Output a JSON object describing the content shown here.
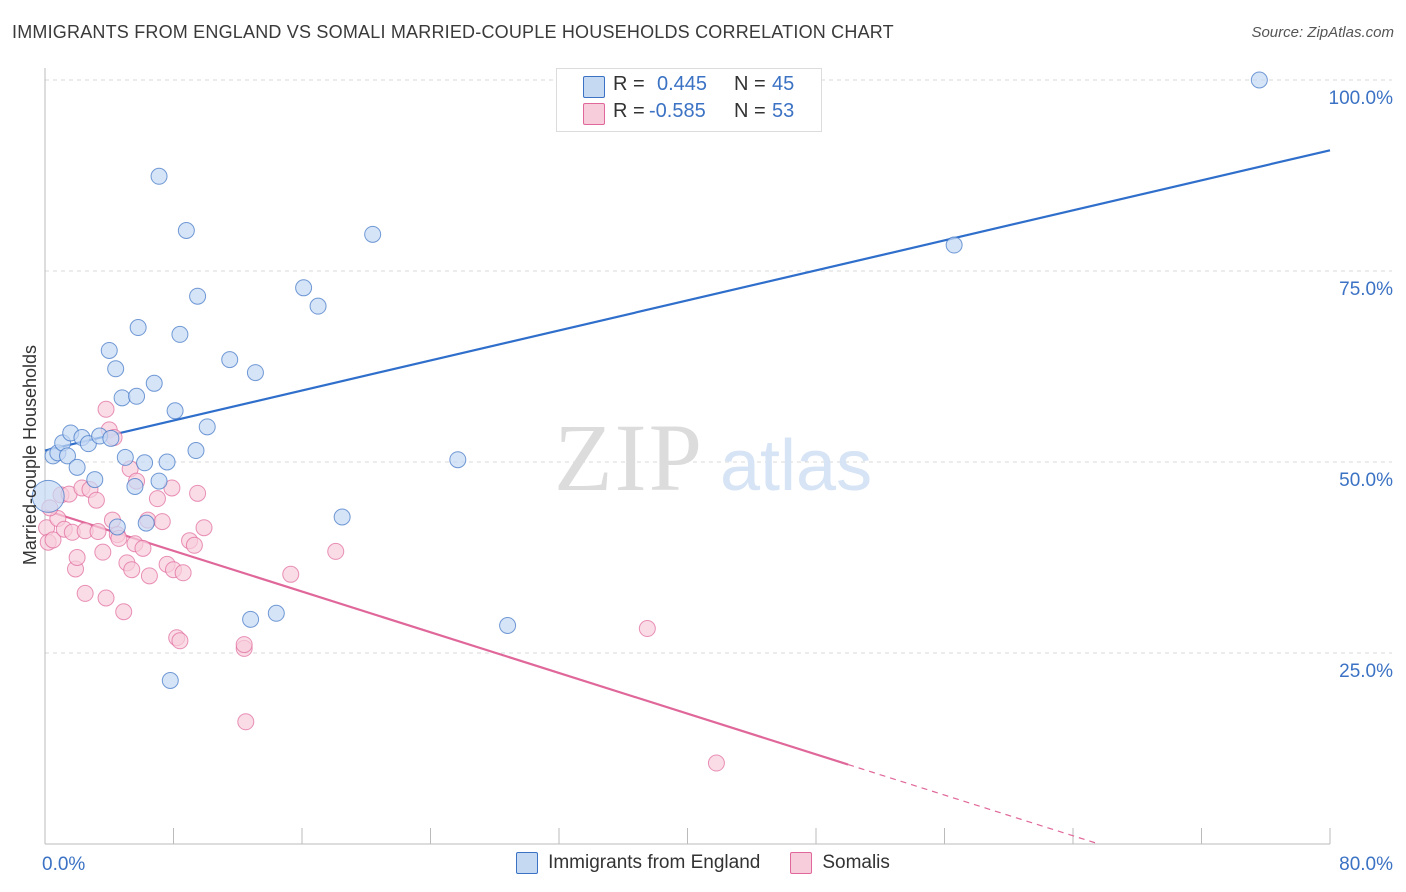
{
  "title": "IMMIGRANTS FROM ENGLAND VS SOMALI MARRIED-COUPLE HOUSEHOLDS CORRELATION CHART",
  "source": "Source: ZipAtlas.com",
  "watermark": {
    "zip": "ZIP",
    "atlas": "atlas"
  },
  "colors": {
    "blue": "#3b72c4",
    "blue_fill": "#c5d9f3",
    "blue_line": "#2f6fcb",
    "pink": "#e0679a",
    "pink_fill": "#f8cddb",
    "grid": "#d8d8d8",
    "axis_text": "#3b72c4"
  },
  "correlation_box": {
    "rows": [
      {
        "r_label": "R =",
        "r_value": "0.445",
        "n_label": "N =",
        "n_value": "45",
        "series": "Immigrants from England"
      },
      {
        "r_label": "R =",
        "r_value": "-0.585",
        "n_label": "N =",
        "n_value": "53",
        "series": "Somalis"
      }
    ]
  },
  "chart_data": {
    "type": "scatter",
    "title": "IMMIGRANTS FROM ENGLAND VS SOMALI MARRIED-COUPLE HOUSEHOLDS CORRELATION CHART",
    "xlabel": "",
    "ylabel": "Married-couple Households",
    "xlim": [
      0,
      80
    ],
    "ylim": [
      0,
      100
    ],
    "x_tick_labels": [
      "0.0%",
      "80.0%"
    ],
    "y_tick_labels": [
      "25.0%",
      "50.0%",
      "75.0%",
      "100.0%"
    ],
    "y_ticks": [
      25,
      50,
      75,
      100
    ],
    "legend": [
      "Immigrants from England",
      "Somalis"
    ],
    "series": [
      {
        "name": "Immigrants from England",
        "color": "#3b72c4",
        "points": [
          [
            0.2,
            45.5
          ],
          [
            0.5,
            50.8
          ],
          [
            0.8,
            51.2
          ],
          [
            1.1,
            52.5
          ],
          [
            1.4,
            50.8
          ],
          [
            1.6,
            53.8
          ],
          [
            2.0,
            49.3
          ],
          [
            2.3,
            53.2
          ],
          [
            2.7,
            52.4
          ],
          [
            3.1,
            47.7
          ],
          [
            3.4,
            53.4
          ],
          [
            4.1,
            53.1
          ],
          [
            4.0,
            64.6
          ],
          [
            4.4,
            62.2
          ],
          [
            4.8,
            58.4
          ],
          [
            5.0,
            50.6
          ],
          [
            5.6,
            46.8
          ],
          [
            5.7,
            58.6
          ],
          [
            5.8,
            67.6
          ],
          [
            6.2,
            49.9
          ],
          [
            6.3,
            42.0
          ],
          [
            6.8,
            60.3
          ],
          [
            7.1,
            87.4
          ],
          [
            7.1,
            47.5
          ],
          [
            7.6,
            50.0
          ],
          [
            7.8,
            21.4
          ],
          [
            8.1,
            56.7
          ],
          [
            8.4,
            66.7
          ],
          [
            8.8,
            80.3
          ],
          [
            9.4,
            51.5
          ],
          [
            9.5,
            71.7
          ],
          [
            10.1,
            54.6
          ],
          [
            11.5,
            63.4
          ],
          [
            13.1,
            61.7
          ],
          [
            12.8,
            29.4
          ],
          [
            14.4,
            30.2
          ],
          [
            16.1,
            72.8
          ],
          [
            17.0,
            70.4
          ],
          [
            18.5,
            42.8
          ],
          [
            20.4,
            79.8
          ],
          [
            25.7,
            50.3
          ],
          [
            28.8,
            28.6
          ],
          [
            56.6,
            78.4
          ],
          [
            75.6,
            100.0
          ],
          [
            4.5,
            41.5
          ]
        ]
      },
      {
        "name": "Somalis",
        "color": "#e0679a",
        "points": [
          [
            0.1,
            41.4
          ],
          [
            0.2,
            39.5
          ],
          [
            0.5,
            39.8
          ],
          [
            0.8,
            42.6
          ],
          [
            1.0,
            45.7
          ],
          [
            1.2,
            41.2
          ],
          [
            1.5,
            45.8
          ],
          [
            1.7,
            40.8
          ],
          [
            1.9,
            36.0
          ],
          [
            2.0,
            37.5
          ],
          [
            2.3,
            46.6
          ],
          [
            2.5,
            41.0
          ],
          [
            2.5,
            32.8
          ],
          [
            2.8,
            46.4
          ],
          [
            3.2,
            45.0
          ],
          [
            3.3,
            40.9
          ],
          [
            3.6,
            38.2
          ],
          [
            3.8,
            56.9
          ],
          [
            3.8,
            32.2
          ],
          [
            4.0,
            54.2
          ],
          [
            4.2,
            42.4
          ],
          [
            4.3,
            53.2
          ],
          [
            4.5,
            40.5
          ],
          [
            4.6,
            40.0
          ],
          [
            4.9,
            30.4
          ],
          [
            5.1,
            36.8
          ],
          [
            5.3,
            49.1
          ],
          [
            5.4,
            35.9
          ],
          [
            5.6,
            39.3
          ],
          [
            5.7,
            47.5
          ],
          [
            6.1,
            38.7
          ],
          [
            6.4,
            42.4
          ],
          [
            6.5,
            35.1
          ],
          [
            7.0,
            45.2
          ],
          [
            7.3,
            42.2
          ],
          [
            7.6,
            36.6
          ],
          [
            7.9,
            46.6
          ],
          [
            8.0,
            35.9
          ],
          [
            8.2,
            27.0
          ],
          [
            8.4,
            26.6
          ],
          [
            8.6,
            35.5
          ],
          [
            9.0,
            39.7
          ],
          [
            9.3,
            39.1
          ],
          [
            9.5,
            45.9
          ],
          [
            9.9,
            41.4
          ],
          [
            12.4,
            25.6
          ],
          [
            12.4,
            26.1
          ],
          [
            12.5,
            16.0
          ],
          [
            15.3,
            35.3
          ],
          [
            18.1,
            38.3
          ],
          [
            37.5,
            28.2
          ],
          [
            41.8,
            10.6
          ],
          [
            0.3,
            44.0
          ]
        ]
      }
    ],
    "trendlines": [
      {
        "series": "Immigrants from England",
        "x0": 0,
        "y0": 51.5,
        "x1": 80,
        "y1": 90.8,
        "dashed_from_x": null
      },
      {
        "series": "Somalis",
        "x0": 0,
        "y0": 43.7,
        "x1": 50.0,
        "y1": 10.4,
        "dash_x0": 50.0,
        "dash_x1": 65.5
      }
    ]
  }
}
